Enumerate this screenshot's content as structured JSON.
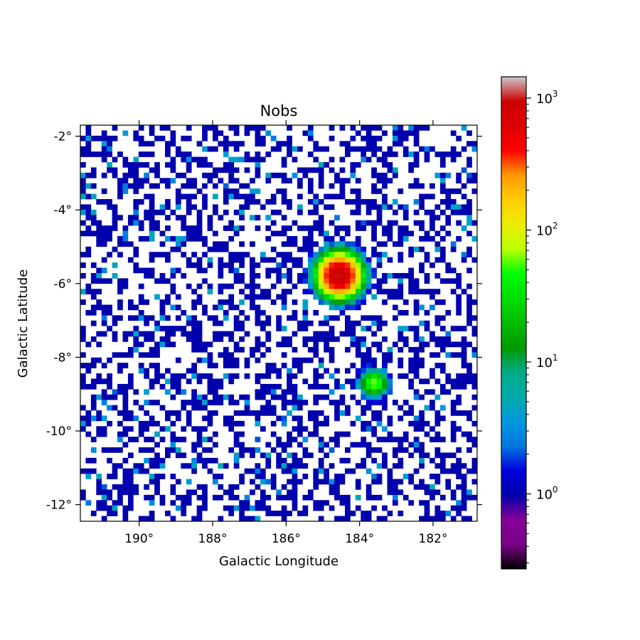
{
  "chart_data": {
    "type": "heatmap",
    "title": "Nobs",
    "xlabel": "Galactic Longitude",
    "ylabel": "Galactic Latitude",
    "x_range": [
      191.6,
      180.8
    ],
    "y_range": [
      -12.45,
      -1.7
    ],
    "x_ticks": [
      {
        "value": 190,
        "label": "190°"
      },
      {
        "value": 188,
        "label": "188°"
      },
      {
        "value": 186,
        "label": "186°"
      },
      {
        "value": 184,
        "label": "184°"
      },
      {
        "value": 182,
        "label": "182°"
      }
    ],
    "y_ticks": [
      {
        "value": -2,
        "label": "-2°"
      },
      {
        "value": -4,
        "label": "-4°"
      },
      {
        "value": -6,
        "label": "-6°"
      },
      {
        "value": -8,
        "label": "-8°"
      },
      {
        "value": -10,
        "label": "-10°"
      },
      {
        "value": -12,
        "label": "-12°"
      }
    ],
    "grid": false,
    "colormap": "nipy_spectral",
    "colorbar": {
      "scale": "log",
      "range": [
        0.27,
        1450
      ],
      "ticks": [
        {
          "value": 1,
          "base": "10",
          "exp": "0"
        },
        {
          "value": 10,
          "base": "10",
          "exp": "1"
        },
        {
          "value": 100,
          "base": "10",
          "exp": "2"
        },
        {
          "value": 1000,
          "base": "10",
          "exp": "3"
        }
      ]
    },
    "grid_size": 75,
    "background_occupancy": 0.43,
    "sources": [
      {
        "l": 184.55,
        "b": -5.78,
        "peak": 1000,
        "sigma_deg": 0.25
      },
      {
        "l": 183.6,
        "b": -8.7,
        "peak": 60,
        "sigma_deg": 0.17
      }
    ]
  }
}
